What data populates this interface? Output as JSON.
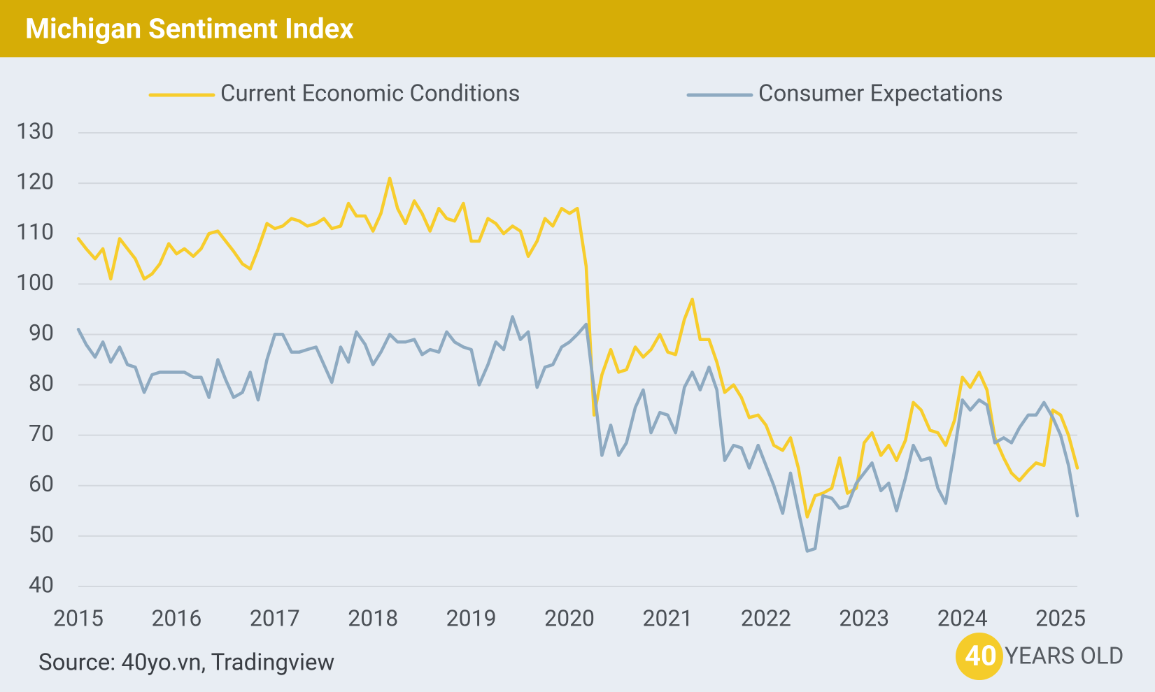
{
  "chart_data": {
    "type": "line",
    "title": "Michigan Sentiment Index",
    "source": "Source: 40yo.vn, Tradingview",
    "logo": {
      "number": "40",
      "text": "YEARS OLD"
    },
    "legend": "top",
    "grid": true,
    "xlim": [
      2015,
      2025.17
    ],
    "xticks": [
      2015,
      2016,
      2017,
      2018,
      2019,
      2020,
      2021,
      2022,
      2023,
      2024,
      2025
    ],
    "ylim": [
      40,
      130
    ],
    "yticks": [
      40,
      50,
      60,
      70,
      80,
      90,
      100,
      110,
      120,
      130
    ],
    "x": [
      2015,
      2015.08,
      2015.17,
      2015.25,
      2015.33,
      2015.42,
      2015.5,
      2015.58,
      2015.67,
      2015.75,
      2015.83,
      2015.92,
      2016,
      2016.08,
      2016.17,
      2016.25,
      2016.33,
      2016.42,
      2016.5,
      2016.58,
      2016.67,
      2016.75,
      2016.83,
      2016.92,
      2017,
      2017.08,
      2017.17,
      2017.25,
      2017.33,
      2017.42,
      2017.5,
      2017.58,
      2017.67,
      2017.75,
      2017.83,
      2017.92,
      2018,
      2018.08,
      2018.17,
      2018.25,
      2018.33,
      2018.42,
      2018.5,
      2018.58,
      2018.67,
      2018.75,
      2018.83,
      2018.92,
      2019,
      2019.08,
      2019.17,
      2019.25,
      2019.33,
      2019.42,
      2019.5,
      2019.58,
      2019.67,
      2019.75,
      2019.83,
      2019.92,
      2020,
      2020.08,
      2020.17,
      2020.25,
      2020.33,
      2020.42,
      2020.5,
      2020.58,
      2020.67,
      2020.75,
      2020.83,
      2020.92,
      2021,
      2021.08,
      2021.17,
      2021.25,
      2021.33,
      2021.42,
      2021.5,
      2021.58,
      2021.67,
      2021.75,
      2021.83,
      2021.92,
      2022,
      2022.08,
      2022.17,
      2022.25,
      2022.33,
      2022.42,
      2022.5,
      2022.58,
      2022.67,
      2022.75,
      2022.83,
      2022.92,
      2023,
      2023.08,
      2023.17,
      2023.25,
      2023.33,
      2023.42,
      2023.5,
      2023.58,
      2023.67,
      2023.75,
      2023.83,
      2023.92,
      2024,
      2024.08,
      2024.17,
      2024.25,
      2024.33,
      2024.42,
      2024.5,
      2024.58,
      2024.67,
      2024.75,
      2024.83,
      2024.92,
      2025,
      2025.08,
      2025.17
    ],
    "series": [
      {
        "name": "Current Economic Conditions",
        "color": "#f7cd2c",
        "values": [
          109,
          107,
          105,
          107,
          101,
          109,
          107,
          105,
          101,
          102,
          104,
          108,
          106,
          107,
          105.5,
          107,
          110,
          110.5,
          108.5,
          106.5,
          104,
          103,
          107,
          112,
          111,
          111.5,
          113,
          112.5,
          111.5,
          112,
          113,
          111,
          111.5,
          116,
          113.5,
          113.5,
          110.5,
          114,
          121,
          115,
          112,
          116.5,
          114,
          110.5,
          115,
          113,
          112.5,
          116,
          108.5,
          108.5,
          113,
          112,
          110,
          111.5,
          110.5,
          105.5,
          108.5,
          113,
          111.5,
          115,
          114,
          115,
          103.5,
          74,
          82,
          87,
          82.5,
          83,
          87.5,
          85.5,
          87,
          90,
          86.5,
          86,
          93,
          97,
          89,
          89,
          84.5,
          78.5,
          80,
          77.5,
          73.5,
          74,
          72,
          68,
          67,
          69.5,
          63.5,
          53.8,
          58,
          58.5,
          59.5,
          65.5,
          58.5,
          59.5,
          68.5,
          70.5,
          66,
          68,
          65,
          69,
          76.5,
          75,
          71,
          70.5,
          68,
          73,
          81.5,
          79.5,
          82.5,
          79,
          69.5,
          65.5,
          62.5,
          61,
          63,
          64.5,
          64,
          75,
          74,
          70,
          63.5
        ]
      },
      {
        "name": "Consumer Expectations",
        "color": "#8eaac1",
        "values": [
          91,
          88,
          85.5,
          88.5,
          84.5,
          87.5,
          84,
          83.5,
          78.5,
          82,
          82.5,
          82.5,
          82.5,
          82.5,
          81.5,
          81.5,
          77.5,
          85,
          81,
          77.5,
          78.5,
          82.5,
          77,
          85,
          90,
          90,
          86.5,
          86.5,
          87,
          87.5,
          84,
          80.5,
          87.5,
          84.5,
          90.5,
          88,
          84,
          86.5,
          90,
          88.5,
          88.5,
          89,
          86,
          87,
          86.5,
          90.5,
          88.5,
          87.5,
          87,
          80,
          84,
          88.5,
          87,
          93.5,
          89,
          90.5,
          79.5,
          83.5,
          84,
          87.5,
          88.5,
          90,
          92,
          79,
          66,
          72,
          66,
          68.5,
          75.5,
          79,
          70.5,
          74.5,
          74,
          70.5,
          79.5,
          82.5,
          79,
          83.5,
          79,
          65,
          68,
          67.5,
          63.5,
          68,
          64,
          60,
          54.5,
          62.5,
          55,
          47,
          47.5,
          58,
          57.5,
          55.5,
          56,
          60.5,
          62.5,
          64.5,
          59,
          60.5,
          55,
          61.5,
          68,
          65,
          65.5,
          59.5,
          56.5,
          67,
          77,
          75,
          77,
          76,
          68.5,
          69.5,
          68.5,
          71.5,
          74,
          74,
          76.5,
          73.5,
          70,
          64,
          54
        ]
      }
    ]
  }
}
